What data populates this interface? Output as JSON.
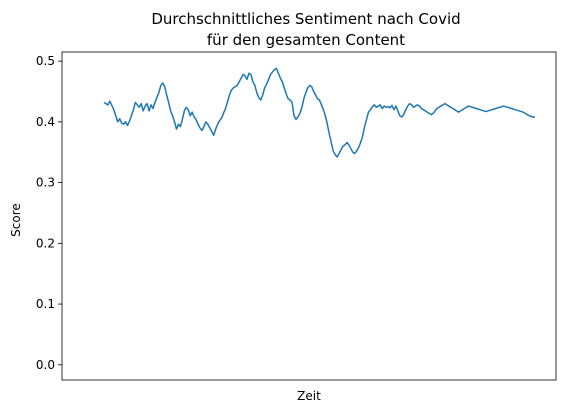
{
  "chart_data": {
    "type": "line",
    "title_line1": "Durchschnittliches Sentiment nach Covid",
    "title_line2": "für den gesamten Content",
    "xlabel": "Zeit",
    "ylabel": "Score",
    "ylim": [
      -0.025,
      0.515
    ],
    "yticks": [
      {
        "value": 0.0,
        "label": "0.0"
      },
      {
        "value": 0.1,
        "label": "0.1"
      },
      {
        "value": 0.2,
        "label": "0.2"
      },
      {
        "value": 0.3,
        "label": "0.3"
      },
      {
        "value": 0.4,
        "label": "0.4"
      },
      {
        "value": 0.5,
        "label": "0.5"
      }
    ],
    "grid": false,
    "series": [
      {
        "color": "#1f77b4",
        "x": [
          0,
          1,
          2,
          3,
          4,
          5,
          6,
          7,
          8,
          9,
          10,
          11,
          12,
          13,
          14,
          15,
          16,
          17,
          18,
          19,
          20,
          21,
          22,
          23,
          24,
          25,
          26,
          27,
          28,
          29,
          30,
          31,
          32,
          33,
          34,
          35,
          36,
          37,
          38,
          39,
          40,
          41,
          42,
          43,
          44,
          45,
          46,
          47,
          48,
          49,
          50,
          51,
          52,
          53,
          54,
          55,
          56,
          57,
          58,
          59,
          60,
          61,
          62,
          63,
          64,
          65,
          66,
          67,
          68,
          69,
          70,
          71,
          72,
          73,
          74,
          75,
          76,
          77,
          78,
          79,
          80,
          81,
          82,
          83,
          84,
          85,
          86,
          87,
          88,
          89,
          90,
          91,
          92,
          93,
          94,
          95,
          96,
          97,
          98,
          99,
          100,
          101,
          102,
          103,
          104,
          105,
          106,
          107,
          108,
          109,
          110,
          111,
          112,
          113,
          114,
          115,
          116,
          117,
          118,
          119,
          120,
          121,
          122,
          123,
          124,
          125,
          126,
          127,
          128,
          129,
          130,
          131,
          132,
          133,
          134,
          135,
          136,
          137,
          138,
          139,
          140,
          141,
          142,
          143,
          144,
          145,
          146,
          147,
          148,
          149,
          150,
          151,
          152,
          153,
          154,
          155,
          156,
          157,
          158,
          159,
          160,
          161,
          162,
          163,
          164,
          165,
          166,
          167,
          168,
          169,
          170,
          171,
          172,
          173,
          174,
          175,
          176,
          177,
          178,
          179,
          180,
          181,
          182,
          183,
          184,
          185,
          186,
          187,
          188,
          189,
          190,
          191,
          192,
          193,
          194,
          195,
          196,
          197,
          198,
          199,
          200,
          201,
          202,
          203,
          204,
          205,
          206,
          207,
          208,
          209,
          210,
          211,
          212,
          213,
          214,
          215,
          216,
          217,
          218,
          219,
          220
        ],
        "y": [
          0.432,
          0.43,
          0.428,
          0.434,
          0.427,
          0.42,
          0.41,
          0.4,
          0.405,
          0.398,
          0.396,
          0.4,
          0.394,
          0.401,
          0.41,
          0.42,
          0.432,
          0.428,
          0.424,
          0.43,
          0.418,
          0.426,
          0.43,
          0.418,
          0.428,
          0.422,
          0.432,
          0.44,
          0.448,
          0.46,
          0.464,
          0.458,
          0.444,
          0.432,
          0.418,
          0.41,
          0.4,
          0.388,
          0.396,
          0.392,
          0.404,
          0.418,
          0.424,
          0.42,
          0.41,
          0.416,
          0.408,
          0.404,
          0.396,
          0.39,
          0.386,
          0.392,
          0.4,
          0.396,
          0.39,
          0.384,
          0.378,
          0.388,
          0.396,
          0.402,
          0.406,
          0.414,
          0.422,
          0.432,
          0.444,
          0.452,
          0.456,
          0.458,
          0.46,
          0.466,
          0.472,
          0.478,
          0.476,
          0.47,
          0.48,
          0.478,
          0.466,
          0.46,
          0.448,
          0.44,
          0.436,
          0.444,
          0.456,
          0.462,
          0.47,
          0.478,
          0.482,
          0.486,
          0.488,
          0.48,
          0.472,
          0.466,
          0.456,
          0.446,
          0.438,
          0.436,
          0.432,
          0.41,
          0.404,
          0.408,
          0.414,
          0.424,
          0.438,
          0.448,
          0.456,
          0.46,
          0.458,
          0.45,
          0.444,
          0.438,
          0.436,
          0.428,
          0.42,
          0.41,
          0.396,
          0.38,
          0.366,
          0.352,
          0.346,
          0.342,
          0.348,
          0.354,
          0.36,
          0.362,
          0.366,
          0.362,
          0.356,
          0.35,
          0.348,
          0.352,
          0.358,
          0.366,
          0.376,
          0.392,
          0.404,
          0.416,
          0.42,
          0.425,
          0.428,
          0.424,
          0.426,
          0.428,
          0.422,
          0.426,
          0.424,
          0.425,
          0.423,
          0.427,
          0.42,
          0.426,
          0.418,
          0.41,
          0.408,
          0.412,
          0.42,
          0.426,
          0.43,
          0.428,
          0.424,
          0.426,
          0.428,
          0.426,
          0.422,
          0.42,
          0.418,
          0.416,
          0.414,
          0.412,
          0.414,
          0.418,
          0.422,
          0.424,
          0.426,
          0.428,
          0.43,
          0.428,
          0.426,
          0.424,
          0.422,
          0.42,
          0.418,
          0.416,
          0.418,
          0.42,
          0.422,
          0.424,
          0.426,
          0.425,
          0.424,
          0.423,
          0.422,
          0.421,
          0.42,
          0.419,
          0.418,
          0.417,
          0.418,
          0.419,
          0.42,
          0.421,
          0.422,
          0.423,
          0.424,
          0.425,
          0.426,
          0.425,
          0.424,
          0.423,
          0.422,
          0.421,
          0.42,
          0.419,
          0.418,
          0.417,
          0.416,
          0.414,
          0.412,
          0.41,
          0.409,
          0.408,
          0.408
        ]
      }
    ]
  }
}
